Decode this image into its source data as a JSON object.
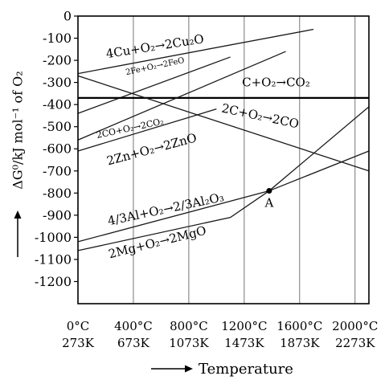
{
  "chart_data": {
    "type": "line",
    "ylabel": "ΔG⁰/kJ mol⁻¹ of O₂",
    "xlabel": "Temperature",
    "ylim": [
      -1300,
      0
    ],
    "xlim": [
      0,
      2100
    ],
    "yticks": [
      0,
      -100,
      -200,
      -300,
      -400,
      -500,
      -600,
      -700,
      -800,
      -900,
      -1000,
      -1100,
      -1200
    ],
    "xticks": [
      {
        "value": 0,
        "c": "0°C",
        "k": "273K"
      },
      {
        "value": 400,
        "c": "400°C",
        "k": "673K"
      },
      {
        "value": 800,
        "c": "800°C",
        "k": "1073K"
      },
      {
        "value": 1200,
        "c": "1200°C",
        "k": "1473K"
      },
      {
        "value": 1600,
        "c": "1600°C",
        "k": "1873K"
      },
      {
        "value": 2000,
        "c": "2000°C",
        "k": "2273K"
      }
    ],
    "grid": "vertical",
    "series": [
      {
        "name": "4Cu+O₂→2Cu₂O",
        "points": [
          [
            0,
            -260
          ],
          [
            1700,
            -60
          ]
        ],
        "label": {
          "x": 560,
          "y": -155,
          "size": 15,
          "rot": -9
        }
      },
      {
        "name": "2Fe+O₂→2FeO",
        "points": [
          [
            0,
            -440
          ],
          [
            1100,
            -185
          ]
        ],
        "label": {
          "x": 560,
          "y": -238,
          "size": 10,
          "rot": -12
        }
      },
      {
        "name": "C+O₂→CO₂",
        "points": [
          [
            0,
            -370
          ],
          [
            2100,
            -370
          ]
        ],
        "label": {
          "x": 1430,
          "y": -318,
          "size": 15,
          "rot": 0
        }
      },
      {
        "name": "2C+O₂→2CO",
        "points": [
          [
            0,
            -270
          ],
          [
            2100,
            -700
          ]
        ],
        "label": {
          "x": 1310,
          "y": -470,
          "size": 15,
          "rot": 12
        }
      },
      {
        "name": "2CO+O₂→2CO₂",
        "points": [
          [
            0,
            -560
          ],
          [
            1500,
            -160
          ]
        ],
        "label": {
          "x": 380,
          "y": -520,
          "size": 11,
          "rot": -12
        }
      },
      {
        "name": "2Zn+O₂→2ZnO",
        "points": [
          [
            0,
            -610
          ],
          [
            1000,
            -420
          ]
        ],
        "label": {
          "x": 540,
          "y": -620,
          "size": 15,
          "rot": -15
        }
      },
      {
        "name": "4/3Al+O₂→2/3Al₂O₃",
        "points": [
          [
            0,
            -1020
          ],
          [
            1380,
            -790
          ],
          [
            2100,
            -610
          ]
        ],
        "label": {
          "x": 640,
          "y": -890,
          "size": 15,
          "rot": -12
        }
      },
      {
        "name": "2Mg+O₂→2MgO",
        "points": [
          [
            0,
            -1060
          ],
          [
            1100,
            -910
          ],
          [
            1380,
            -790
          ],
          [
            2100,
            -410
          ]
        ],
        "label": {
          "x": 580,
          "y": -1040,
          "size": 15,
          "rot": -14
        }
      }
    ],
    "point": {
      "name": "A",
      "x": 1380,
      "y": -790
    }
  }
}
